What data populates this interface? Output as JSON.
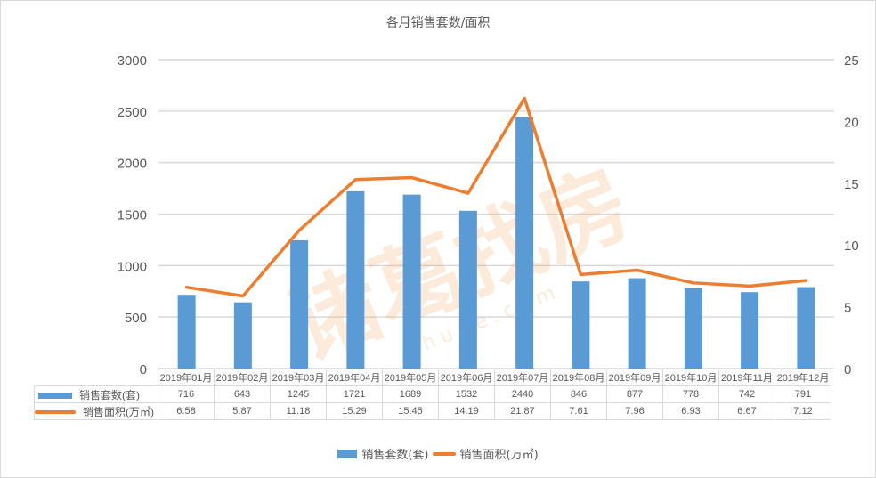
{
  "chart_data": {
    "type": "bar+line",
    "title": "各月销售套数/面积",
    "categories": [
      "2019年01月",
      "2019年02月",
      "2019年03月",
      "2019年04月",
      "2019年05月",
      "2019年06月",
      "2019年07月",
      "2019年08月",
      "2019年09月",
      "2019年10月",
      "2019年11月",
      "2019年12月"
    ],
    "series": [
      {
        "name": "销售套数(套)",
        "type": "bar",
        "axis": "left",
        "color": "#5b9bd5",
        "values": [
          716,
          643,
          1245,
          1721,
          1689,
          1532,
          2440,
          846,
          877,
          778,
          742,
          791
        ]
      },
      {
        "name": "销售面积(万㎡)",
        "type": "line",
        "axis": "right",
        "color": "#ed7d31",
        "values": [
          6.58,
          5.87,
          11.18,
          15.29,
          15.45,
          14.19,
          21.87,
          7.61,
          7.96,
          6.93,
          6.67,
          7.12
        ]
      }
    ],
    "left_axis": {
      "ticks": [
        "0",
        "500",
        "1000",
        "1500",
        "2000",
        "2500",
        "3000"
      ],
      "ylim": [
        0,
        3000
      ]
    },
    "right_axis": {
      "ticks": [
        "0",
        "5",
        "10",
        "15",
        "20",
        "25"
      ],
      "ylim": [
        0,
        25
      ]
    },
    "grid": true,
    "legend_position": "bottom",
    "data_table": true
  },
  "title": "各月销售套数/面积",
  "table": {
    "rows": [
      {
        "label": "销售套数(套)",
        "values": [
          "716",
          "643",
          "1245",
          "1721",
          "1689",
          "1532",
          "2440",
          "846",
          "877",
          "778",
          "742",
          "791"
        ]
      },
      {
        "label": "销售面积(万㎡)",
        "values": [
          "6.58",
          "5.87",
          "11.18",
          "15.29",
          "15.45",
          "14.19",
          "21.87",
          "7.61",
          "7.96",
          "6.93",
          "6.67",
          "7.12"
        ]
      }
    ]
  },
  "legend": {
    "bar_label": "销售套数(套)",
    "line_label": "销售面积(万㎡)"
  },
  "watermark": {
    "text": "诸葛找房",
    "subtext": "z h u g e . c o m"
  }
}
